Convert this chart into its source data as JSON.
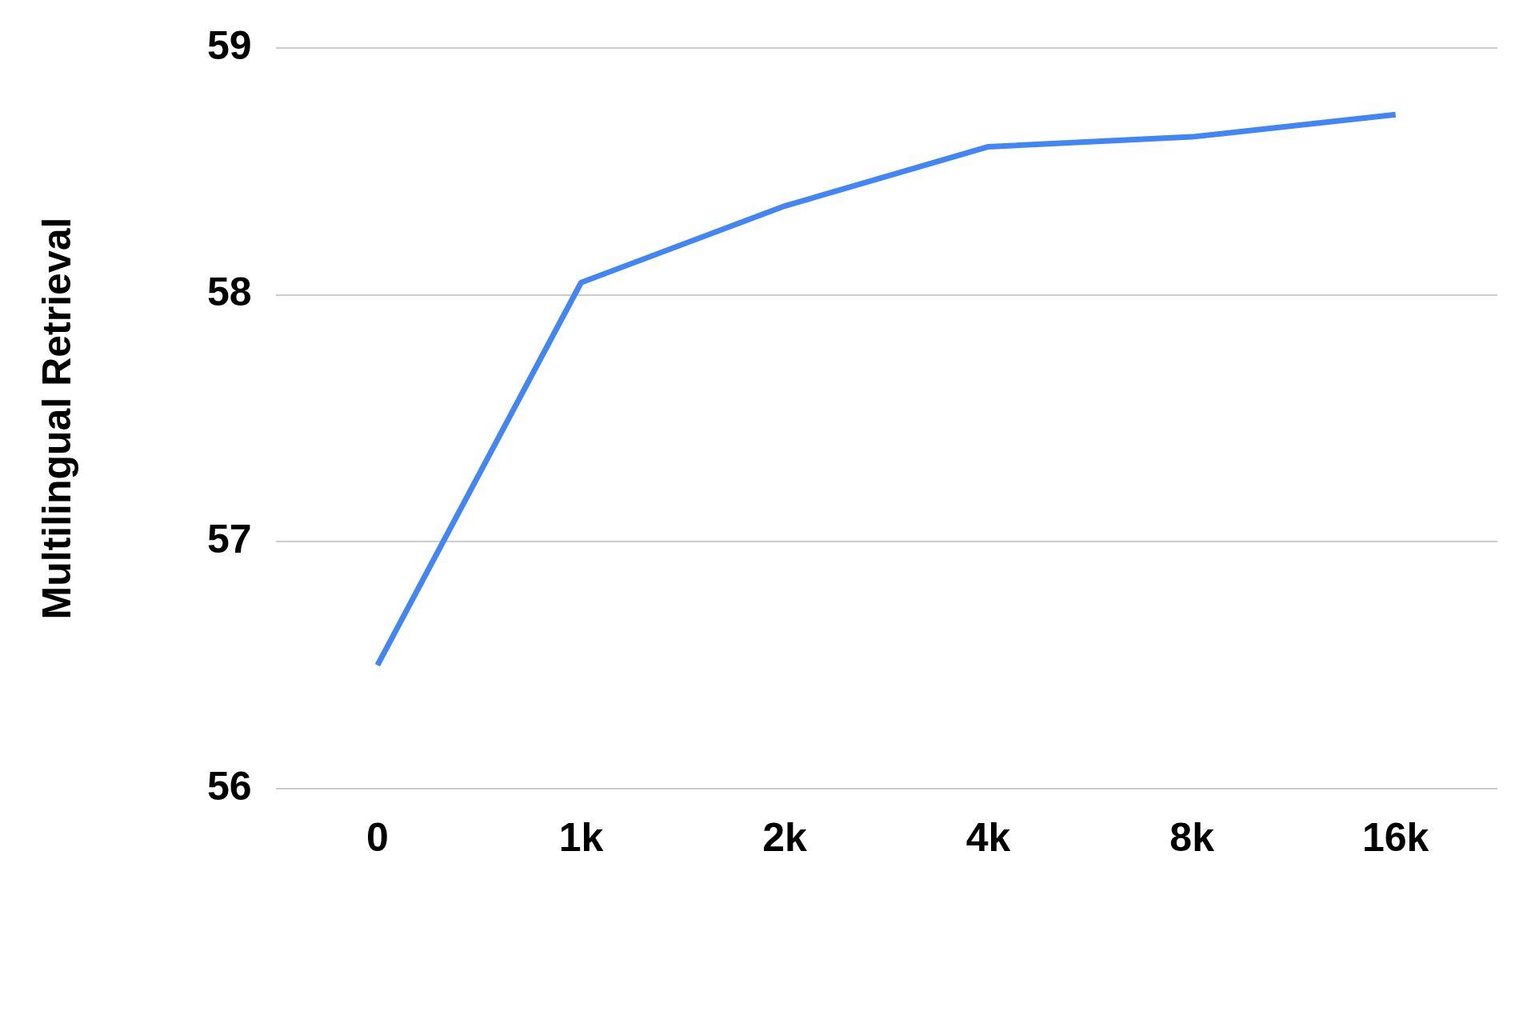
{
  "chart_data": {
    "type": "line",
    "ylabel": "Multilingual Retrieval",
    "categories": [
      "0",
      "1k",
      "2k",
      "4k",
      "8k",
      "16k"
    ],
    "series": [
      {
        "color": "#4285f4",
        "values": [
          56.5,
          58.05,
          58.36,
          58.6,
          58.64,
          58.73
        ]
      }
    ],
    "ylim": [
      56,
      59
    ],
    "yticks": [
      56,
      57,
      58,
      59
    ],
    "grid": "y",
    "legend": false,
    "marker": "none",
    "line_style": "solid"
  }
}
